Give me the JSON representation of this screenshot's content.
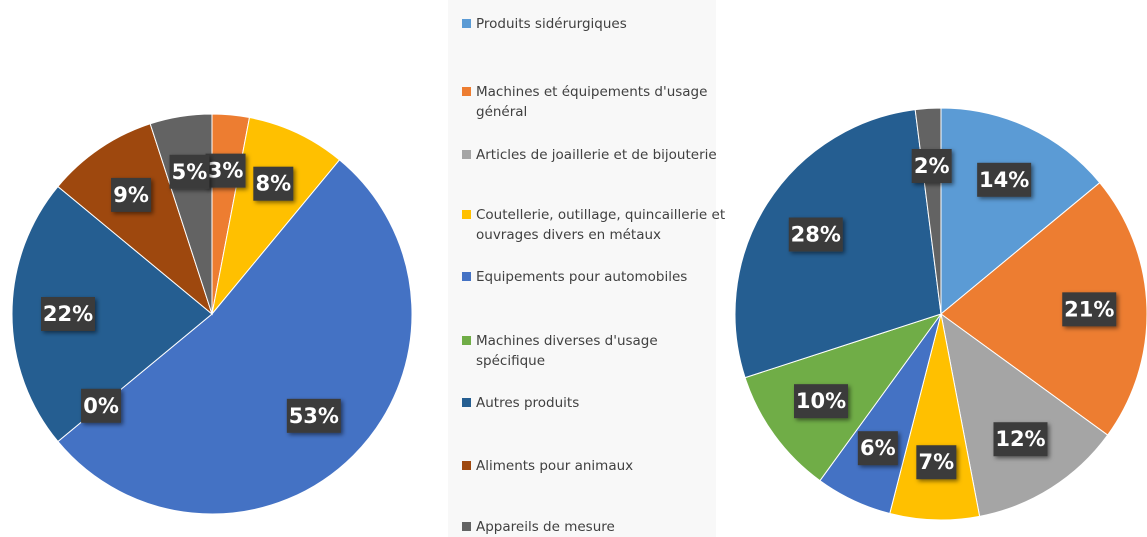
{
  "legend": {
    "categories": [
      "Produits sidérurgiques",
      "Machines et équipements d'usage général",
      "Articles de joaillerie et de bijouterie",
      "Coutellerie, outillage, quincaillerie et ouvrages divers en métaux",
      "Equipements pour automobiles",
      "Machines diverses d'usage spécifique",
      "Autres produits",
      "Aliments pour animaux",
      "Appareils de mesure"
    ],
    "colors": [
      "#5b9bd5",
      "#ed7d31",
      "#a5a5a5",
      "#ffc000",
      "#4472c4",
      "#70ad47",
      "#255e91",
      "#9e480e",
      "#636363"
    ]
  },
  "chart_data": [
    {
      "type": "pie",
      "values": [
        0,
        3,
        0,
        8,
        53,
        0,
        22,
        9,
        5
      ],
      "value_labels": [
        null,
        "3%",
        null,
        "8%",
        "53%",
        "0%",
        "22%",
        "9%",
        "5%"
      ]
    },
    {
      "type": "pie",
      "values": [
        14,
        21,
        12,
        7,
        6,
        10,
        28,
        0,
        2
      ],
      "value_labels": [
        "14%",
        "21%",
        "12%",
        "7%",
        "6%",
        "10%",
        "28%",
        null,
        "2%"
      ]
    }
  ]
}
